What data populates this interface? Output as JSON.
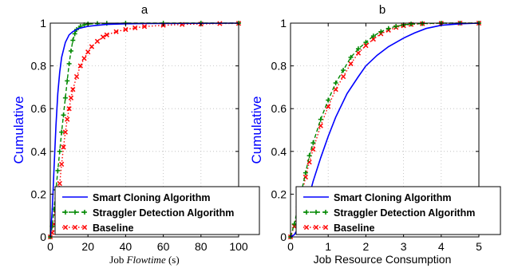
{
  "chart_data": [
    {
      "type": "line",
      "title": "a",
      "ylabel": "Cumulative",
      "xlabel": {
        "prefix": "Job ",
        "italic": "Flowtime",
        "suffix": " (s)"
      },
      "xlim": [
        0,
        100
      ],
      "ylim": [
        0,
        1
      ],
      "xticks": [
        "0",
        "20",
        "40",
        "60",
        "80",
        "100"
      ],
      "xtick_values": [
        0,
        20,
        40,
        60,
        80,
        100
      ],
      "yticks": [
        "0",
        "0.2",
        "0.4",
        "0.6",
        "0.8",
        "1"
      ],
      "ytick_values": [
        0,
        0.2,
        0.4,
        0.6,
        0.8,
        1
      ],
      "grid": true,
      "legend_position": "bottom-right",
      "series": [
        {
          "name": "Smart Cloning Algorithm",
          "color": "#0000ff",
          "style": "solid",
          "x": [
            0,
            1,
            2,
            3,
            4,
            5,
            6,
            8,
            10,
            12,
            15,
            20,
            25,
            30,
            40,
            50,
            70,
            100
          ],
          "y": [
            0,
            0.12,
            0.32,
            0.52,
            0.67,
            0.77,
            0.84,
            0.91,
            0.945,
            0.96,
            0.975,
            0.985,
            0.99,
            0.994,
            0.997,
            0.998,
            0.999,
            1.0
          ]
        },
        {
          "name": "Straggler Detection Algorithm",
          "color": "#008800",
          "style": "dashed-plus",
          "x": [
            0,
            1,
            2,
            3,
            4,
            5,
            6,
            7,
            8,
            9,
            10,
            11,
            12,
            13,
            14,
            16,
            18,
            20,
            25,
            30,
            40,
            60,
            80,
            100
          ],
          "y": [
            0,
            0.05,
            0.13,
            0.22,
            0.31,
            0.4,
            0.49,
            0.57,
            0.65,
            0.73,
            0.81,
            0.87,
            0.92,
            0.95,
            0.97,
            0.985,
            0.992,
            0.996,
            0.998,
            0.999,
            1.0,
            1.0,
            1.0,
            1.0
          ]
        },
        {
          "name": "Baseline",
          "color": "#ff0000",
          "style": "dotted-x",
          "x": [
            0,
            1,
            2,
            3,
            4,
            5,
            6,
            7,
            8,
            9,
            10,
            11,
            12,
            14,
            16,
            18,
            20,
            22,
            25,
            28,
            30,
            35,
            40,
            45,
            50,
            60,
            70,
            80,
            90,
            100
          ],
          "y": [
            0,
            0.02,
            0.06,
            0.11,
            0.17,
            0.25,
            0.34,
            0.42,
            0.49,
            0.55,
            0.6,
            0.65,
            0.69,
            0.75,
            0.8,
            0.835,
            0.865,
            0.89,
            0.915,
            0.935,
            0.945,
            0.96,
            0.97,
            0.978,
            0.984,
            0.99,
            0.994,
            0.996,
            0.998,
            0.999
          ]
        }
      ]
    },
    {
      "type": "line",
      "title": "b",
      "ylabel": "Cumulative",
      "xlabel": {
        "prefix": "Job Resource Consumption",
        "italic": "",
        "suffix": ""
      },
      "xlim": [
        0,
        5
      ],
      "ylim": [
        0,
        1
      ],
      "xticks": [
        "0",
        "1",
        "2",
        "3",
        "4",
        "5"
      ],
      "xtick_values": [
        0,
        1,
        2,
        3,
        4,
        5
      ],
      "yticks": [
        "0",
        "0.2",
        "0.4",
        "0.6",
        "0.8",
        "1"
      ],
      "ytick_values": [
        0,
        0.2,
        0.4,
        0.6,
        0.8,
        1
      ],
      "grid": true,
      "legend_position": "bottom-right",
      "series": [
        {
          "name": "Smart Cloning Algorithm",
          "color": "#0000ff",
          "style": "solid",
          "x": [
            0,
            0.1,
            0.2,
            0.3,
            0.4,
            0.6,
            0.8,
            1.0,
            1.2,
            1.5,
            1.8,
            2.0,
            2.3,
            2.6,
            3.0,
            3.3,
            3.6,
            4.0,
            4.5,
            5.0
          ],
          "y": [
            0,
            0.01,
            0.04,
            0.08,
            0.13,
            0.26,
            0.37,
            0.47,
            0.56,
            0.67,
            0.75,
            0.8,
            0.85,
            0.89,
            0.93,
            0.955,
            0.975,
            0.99,
            0.997,
            1.0
          ]
        },
        {
          "name": "Straggler Detection Algorithm",
          "color": "#008800",
          "style": "dashed-plus",
          "x": [
            0,
            0.1,
            0.2,
            0.3,
            0.4,
            0.5,
            0.6,
            0.8,
            1.0,
            1.2,
            1.4,
            1.6,
            1.8,
            2.0,
            2.2,
            2.4,
            2.6,
            2.8,
            3.0,
            3.2,
            3.5,
            4.0,
            4.5,
            5.0
          ],
          "y": [
            0,
            0.06,
            0.14,
            0.22,
            0.3,
            0.38,
            0.44,
            0.55,
            0.64,
            0.72,
            0.78,
            0.84,
            0.88,
            0.91,
            0.94,
            0.96,
            0.975,
            0.985,
            0.992,
            0.996,
            0.998,
            1.0,
            1.0,
            1.0
          ]
        },
        {
          "name": "Baseline",
          "color": "#ff0000",
          "style": "dotted-x",
          "x": [
            0,
            0.1,
            0.2,
            0.3,
            0.4,
            0.5,
            0.6,
            0.8,
            1.0,
            1.2,
            1.4,
            1.6,
            1.8,
            2.0,
            2.2,
            2.4,
            2.6,
            2.8,
            3.0,
            3.2,
            3.5,
            4.0,
            4.5,
            5.0
          ],
          "y": [
            0,
            0.05,
            0.12,
            0.2,
            0.28,
            0.35,
            0.41,
            0.52,
            0.61,
            0.69,
            0.75,
            0.81,
            0.86,
            0.895,
            0.925,
            0.95,
            0.967,
            0.98,
            0.988,
            0.994,
            0.997,
            0.999,
            1.0,
            1.0
          ]
        }
      ]
    }
  ]
}
